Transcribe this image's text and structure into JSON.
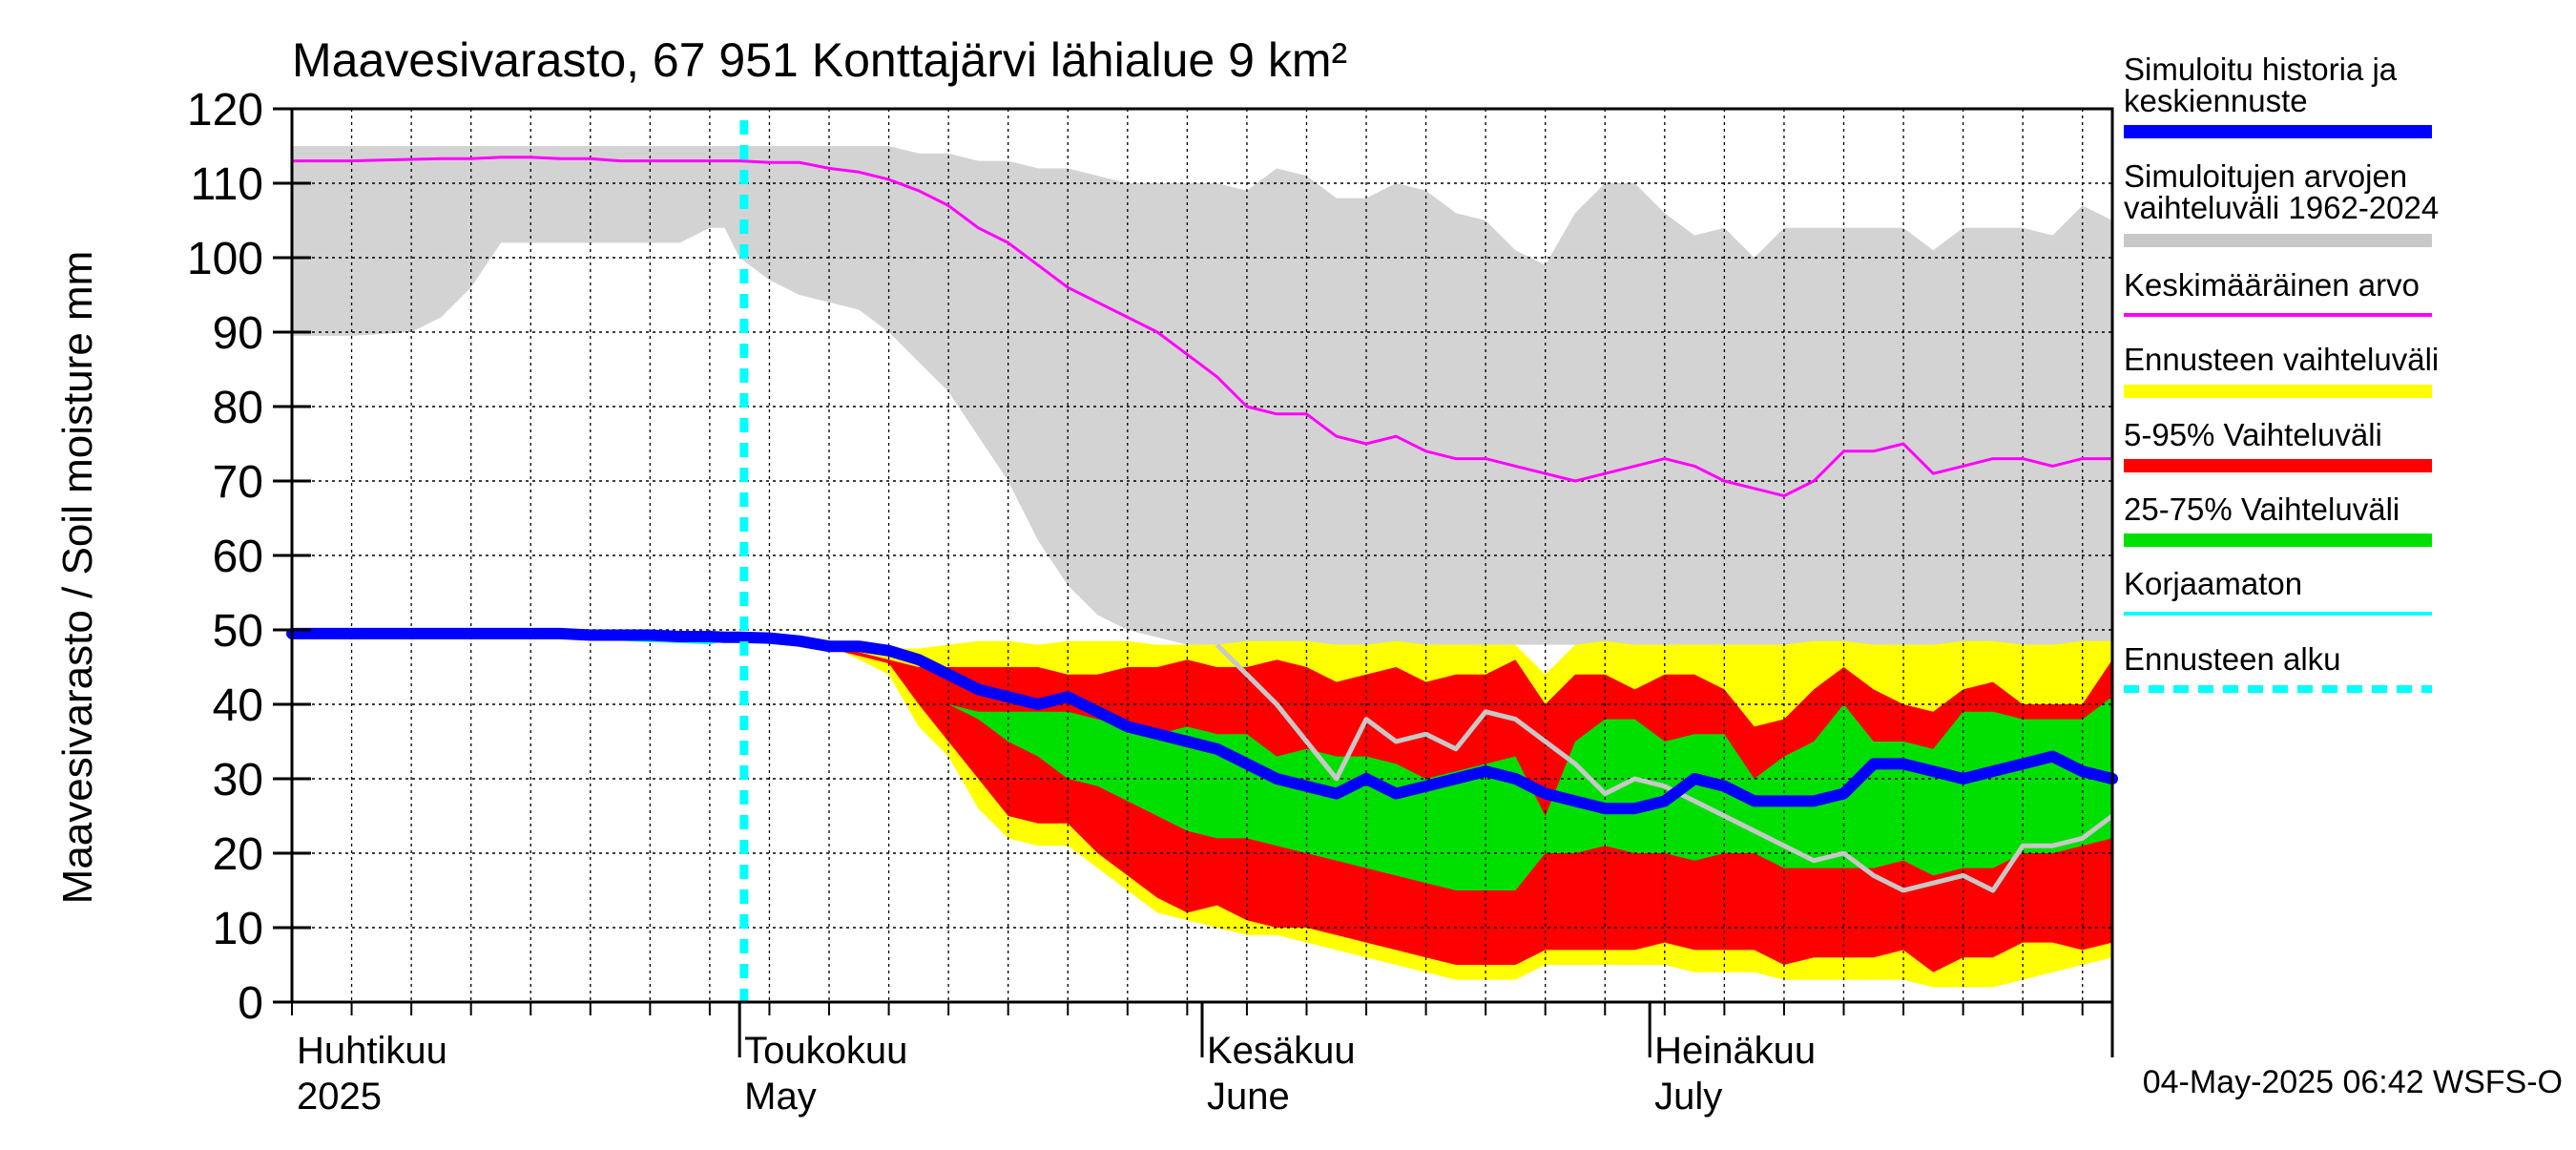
{
  "chart_data": {
    "type": "area",
    "title": "Maavesivarasto, 67 951 Konttajärvi lähialue 9 km²",
    "ylabel": "Maavesivarasto / Soil moisture   mm",
    "ylim": [
      0,
      120
    ],
    "xlim_days": [
      0,
      122
    ],
    "yticks": [
      "0",
      "10",
      "20",
      "30",
      "40",
      "50",
      "60",
      "70",
      "80",
      "90",
      "100",
      "110",
      "120"
    ],
    "months": [
      {
        "fi": "Huhtikuu",
        "en": "2025",
        "day": 0
      },
      {
        "fi": "Toukokuu",
        "en": "May",
        "day": 30
      },
      {
        "fi": "Kesäkuu",
        "en": "June",
        "day": 61
      },
      {
        "fi": "Heinäkuu",
        "en": "July",
        "day": 91
      }
    ],
    "month_boundaries": [
      30,
      61,
      91,
      122
    ],
    "forecast_start_day": 30.3,
    "timestamp": "04-May-2025 06:42 WSFS-O",
    "x": [
      0,
      4,
      8,
      10,
      12,
      14,
      16,
      18,
      20,
      22,
      24,
      26,
      28,
      29,
      30,
      32,
      34,
      36,
      38,
      40,
      42,
      44,
      46,
      48,
      50,
      52,
      54,
      56,
      58,
      60,
      62,
      64,
      66,
      68,
      70,
      72,
      74,
      76,
      78,
      80,
      82,
      84,
      86,
      88,
      90,
      92,
      94,
      96,
      98,
      100,
      102,
      104,
      106,
      108,
      110,
      112,
      114,
      116,
      118,
      120,
      122
    ],
    "hist_range": {
      "upper": [
        115,
        115,
        115,
        115,
        115,
        115,
        115,
        115,
        115,
        115,
        115,
        115,
        115,
        115,
        115,
        115,
        115,
        115,
        115,
        115,
        114,
        114,
        113,
        113,
        112,
        112,
        111,
        110,
        110,
        110,
        110,
        109,
        112,
        111,
        108,
        108,
        110,
        109,
        106,
        105,
        101,
        99,
        106,
        110,
        110,
        106,
        103,
        104,
        100,
        104,
        104,
        104,
        104,
        104,
        101,
        104,
        104,
        104,
        103,
        107,
        105
      ],
      "lower": [
        89.5,
        89.5,
        90,
        92,
        96,
        102,
        102,
        102,
        102,
        102,
        102,
        102,
        104,
        104,
        100,
        97,
        95,
        94,
        93,
        90,
        86,
        82,
        76,
        70,
        62,
        56,
        52,
        50,
        49,
        48,
        48,
        48,
        48,
        48,
        48,
        48,
        48,
        48,
        48,
        48,
        48,
        48,
        48,
        48,
        48,
        48,
        48,
        48,
        48,
        48,
        48,
        48,
        48,
        48,
        48,
        48,
        48,
        48,
        48,
        48,
        48
      ]
    },
    "forecast_range": {
      "upper": [
        49.5,
        49.5,
        49.5,
        49.5,
        49.5,
        49.5,
        49.5,
        49.5,
        49.3,
        49.3,
        49.3,
        49.1,
        49.1,
        49,
        49,
        48.9,
        48.6,
        48.5,
        48.2,
        47.5,
        47.5,
        48,
        48.5,
        48.5,
        48,
        48.5,
        48.5,
        48.5,
        48,
        48,
        48,
        48.5,
        48.5,
        48.5,
        48,
        48,
        48.5,
        48,
        48,
        48,
        48,
        44,
        48,
        48.5,
        48,
        48,
        48,
        48,
        48,
        48,
        48.5,
        48.5,
        48,
        48,
        48,
        48.5,
        48.5,
        48,
        48,
        48.5,
        48.5
      ],
      "lower": [
        49.5,
        49.5,
        49.5,
        49.5,
        49.5,
        49.5,
        49.5,
        49.5,
        49.3,
        49.3,
        49.3,
        49.1,
        49.1,
        49,
        49,
        48.9,
        48.6,
        48,
        46,
        44,
        37,
        33,
        26,
        22,
        21,
        21,
        18,
        15,
        12,
        11,
        10,
        9,
        9,
        8,
        7,
        6,
        5,
        4,
        3,
        3,
        3,
        5,
        5,
        5,
        5,
        5,
        4,
        4,
        4,
        3,
        3,
        3,
        3,
        3,
        2,
        2,
        2,
        3,
        4,
        5,
        6
      ]
    },
    "p5_95": {
      "upper": [
        49.5,
        49.5,
        49.5,
        49.5,
        49.5,
        49.5,
        49.5,
        49.5,
        49.3,
        49.3,
        49.3,
        49.1,
        49.1,
        49,
        49,
        48.9,
        48.5,
        48,
        47,
        46,
        45,
        45,
        45,
        45,
        45,
        44,
        44,
        45,
        45,
        46,
        45,
        45,
        46,
        45,
        43,
        44,
        45,
        43,
        44,
        44,
        46,
        40,
        44,
        44,
        42,
        44,
        44,
        42,
        37,
        38,
        42,
        45,
        42,
        40,
        39,
        42,
        43,
        40,
        40,
        40,
        46
      ],
      "lower": [
        49.5,
        49.5,
        49.5,
        49.5,
        49.5,
        49.5,
        49.5,
        49.5,
        49.3,
        49.3,
        49.3,
        49.1,
        49.1,
        49,
        49,
        48.9,
        48.5,
        47.5,
        46.5,
        45.5,
        40,
        35,
        30,
        25,
        24,
        24,
        20,
        17,
        14,
        12,
        13,
        11,
        10,
        10,
        9,
        8,
        7,
        6,
        5,
        5,
        5,
        7,
        7,
        7,
        7,
        8,
        7,
        7,
        7,
        5,
        6,
        6,
        6,
        7,
        4,
        6,
        6,
        8,
        8,
        7,
        8
      ]
    },
    "p25_75": {
      "upper": [
        49.5,
        49.5,
        49.5,
        49.5,
        49.5,
        49.5,
        49.5,
        49.5,
        49.3,
        49.3,
        49.3,
        49.1,
        49.1,
        49,
        49,
        48.9,
        48.5,
        47.5,
        46.5,
        45,
        42,
        40,
        39,
        39,
        39,
        39,
        38,
        37,
        36,
        37,
        36,
        36,
        33,
        34,
        33,
        33,
        32,
        30,
        31,
        32,
        33,
        25,
        35,
        38,
        38,
        35,
        36,
        36,
        30,
        33,
        35,
        40,
        35,
        35,
        34,
        39,
        39,
        38,
        38,
        38,
        41
      ],
      "lower": [
        49.5,
        49.5,
        49.5,
        49.5,
        49.5,
        49.5,
        49.5,
        49.5,
        49.3,
        49.3,
        49.3,
        49.1,
        49.1,
        49,
        49,
        48.9,
        48.5,
        47.5,
        46.5,
        45,
        42,
        40,
        38,
        35,
        33,
        30,
        29,
        27,
        25,
        23,
        22,
        22,
        21,
        20,
        19,
        18,
        17,
        16,
        15,
        15,
        15,
        20,
        20,
        21,
        20,
        20,
        19,
        20,
        20,
        18,
        18,
        18,
        18,
        19,
        17,
        18,
        18,
        20,
        20,
        21,
        22
      ]
    },
    "series": [
      {
        "name": "Simuloitu historia ja keskiennuste",
        "color": "#0000ff",
        "values": [
          49.5,
          49.5,
          49.5,
          49.5,
          49.5,
          49.5,
          49.5,
          49.5,
          49.3,
          49.3,
          49.3,
          49.1,
          49.1,
          49,
          49,
          48.9,
          48.5,
          47.8,
          47.8,
          47.2,
          46,
          44,
          42,
          41,
          40,
          41,
          39,
          37,
          36,
          35,
          34,
          32,
          30,
          29,
          28,
          30,
          28,
          29,
          30,
          31,
          30,
          28,
          27,
          26,
          26,
          27,
          30,
          29,
          27,
          27,
          27,
          28,
          32,
          32,
          31,
          30,
          31,
          32,
          33,
          31,
          30
        ]
      },
      {
        "name": "Keskimääräinen arvo",
        "color": "#ff00ff",
        "values": [
          113,
          113,
          113.2,
          113.3,
          113.3,
          113.5,
          113.5,
          113.3,
          113.3,
          113,
          113,
          113,
          113,
          113,
          113,
          112.8,
          112.8,
          112,
          111.5,
          110.5,
          109,
          107,
          104,
          102,
          99,
          96,
          94,
          92,
          90,
          87,
          84,
          80,
          79,
          79,
          76,
          75,
          76,
          74,
          73,
          73,
          72,
          71,
          70,
          71,
          72,
          73,
          72,
          70,
          69,
          68,
          70,
          74,
          74,
          75,
          71,
          72,
          73,
          73,
          72,
          73,
          73
        ]
      },
      {
        "name": "Korjaamaton",
        "color": "#00ffff",
        "values": [
          49.5,
          49.5,
          49.5,
          49.5,
          49.2,
          49.2,
          49.2,
          49.1,
          48.9,
          48.8,
          48.6,
          48.5,
          48.3,
          48.8,
          49,
          48.9,
          48.5,
          47.8,
          47.8,
          47.2,
          null,
          null,
          null,
          null,
          null,
          null,
          null,
          null,
          null,
          null,
          null,
          null,
          null,
          null,
          null,
          null,
          null,
          null,
          null,
          null,
          null,
          null,
          null,
          null,
          null,
          null,
          null,
          null,
          null,
          null,
          null,
          null,
          null,
          null,
          null,
          null,
          null,
          null,
          null,
          null,
          null
        ]
      },
      {
        "name": "Simuloitujen arvojen vaihteluväli 1962-2024 sample",
        "color": "#c8c8c8",
        "values": [
          null,
          null,
          null,
          null,
          null,
          null,
          null,
          null,
          null,
          null,
          null,
          null,
          null,
          null,
          null,
          null,
          null,
          null,
          null,
          null,
          null,
          null,
          null,
          null,
          null,
          null,
          null,
          null,
          null,
          null,
          48,
          44,
          40,
          35,
          30,
          38,
          35,
          36,
          34,
          39,
          38,
          35,
          32,
          28,
          30,
          29,
          27,
          25,
          23,
          21,
          19,
          20,
          17,
          15,
          16,
          17,
          15,
          21,
          21,
          22,
          25
        ]
      }
    ],
    "legend": [
      {
        "label": "Simuloitu historia ja keskiennuste",
        "color": "#0000ff",
        "style": "thick"
      },
      {
        "label": "Simuloitujen arvojen vaihteluväli 1962-2024",
        "color": "#c8c8c8",
        "style": "thick"
      },
      {
        "label": "Keskimääräinen arvo",
        "color": "#ff00ff",
        "style": "thin"
      },
      {
        "label": "Ennusteen vaihteluväli",
        "color": "#ffff00",
        "style": "thick"
      },
      {
        "label": "5-95% Vaihteluväli",
        "color": "#ff0000",
        "style": "thick"
      },
      {
        "label": "25-75% Vaihteluväli",
        "color": "#00e000",
        "style": "thick"
      },
      {
        "label": "Korjaamaton",
        "color": "#00ffff",
        "style": "thin"
      },
      {
        "label": "Ennusteen alku",
        "color": "#00ffff",
        "style": "dashed"
      }
    ]
  }
}
